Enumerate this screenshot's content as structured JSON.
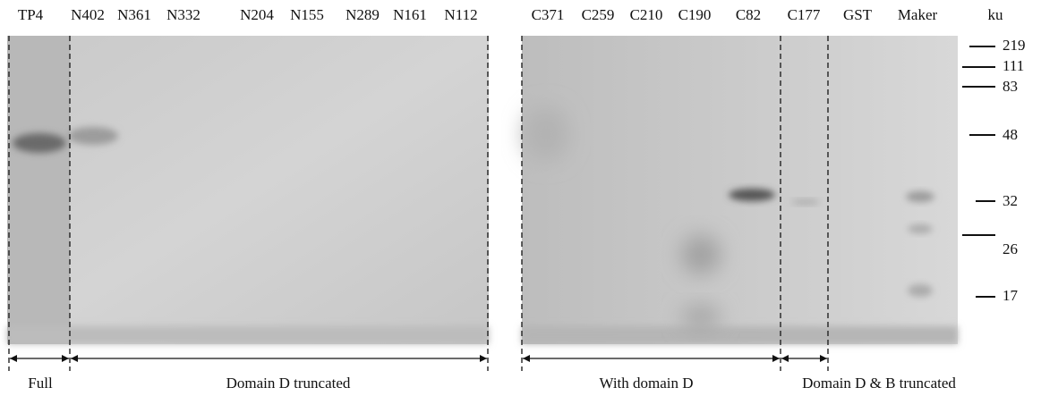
{
  "lanes_left": [
    "TP4",
    "N402",
    "N361",
    "N332",
    "N204",
    "N155",
    "N289",
    "N161",
    "N112"
  ],
  "lanes_right": [
    "C371",
    "C259",
    "C210",
    "C190",
    "C82",
    "C177",
    "GST",
    "Maker"
  ],
  "unit": "ku",
  "markers": [
    "219",
    "111",
    "83",
    "48",
    "32",
    "26",
    "17"
  ],
  "regions": [
    "Full",
    "Domain D truncated",
    "With domain D",
    "Domain D & B truncated"
  ]
}
